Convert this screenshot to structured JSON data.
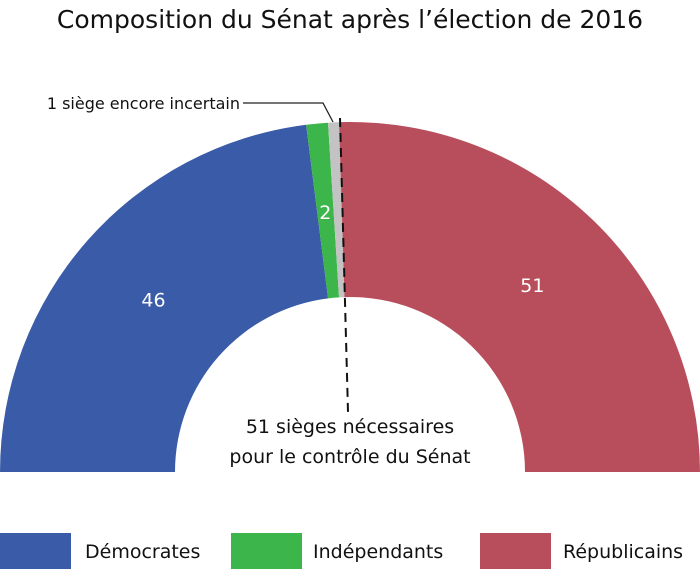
{
  "chart_data": {
    "type": "pie",
    "subtype": "half-donut",
    "title": "Composition du Sénat après l’élection de 2016",
    "total_seats": 100,
    "slices": [
      {
        "name": "Démocrates",
        "value": 46,
        "label": "46",
        "color": "#3a5ba8"
      },
      {
        "name": "Indépendants",
        "value": 2,
        "label": "2",
        "color": "#3cb54a"
      },
      {
        "name": "Incertain",
        "value": 1,
        "label": "",
        "color": "#c3c3c3"
      },
      {
        "name": "Républicains",
        "value": 51,
        "label": "51",
        "color": "#b84e5c"
      }
    ],
    "annotations": {
      "uncertain": "1 siège encore incertain",
      "majority_line1": "51 sièges nécessaires",
      "majority_line2": "pour le contrôle du Sénat",
      "majority_seat": 50.4
    },
    "legend": {
      "placement": "bottom",
      "entries": [
        {
          "label": "Démocrates",
          "color": "#3a5ba8"
        },
        {
          "label": "Indépendants",
          "color": "#3cb54a"
        },
        {
          "label": "Républicains",
          "color": "#b84e5c"
        }
      ]
    }
  }
}
